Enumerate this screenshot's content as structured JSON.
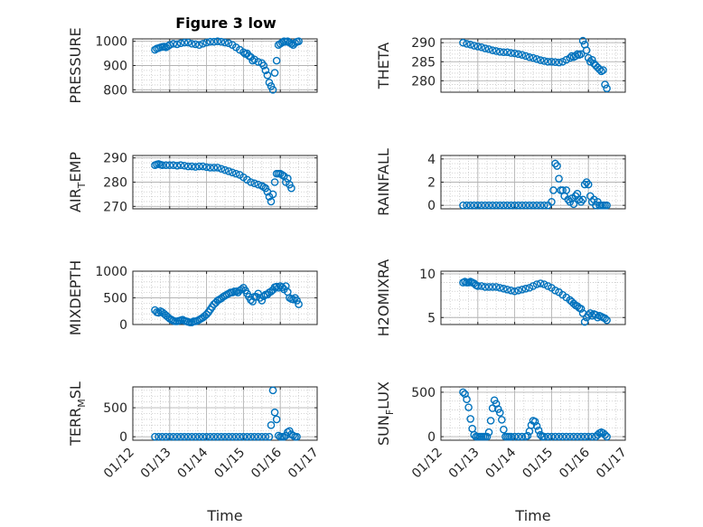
{
  "figure_title": "Figure 3 low",
  "colors": {
    "marker": "#0072BD",
    "axis": "#262626",
    "grid": "#c8c8c8",
    "frame": "#ffffff"
  },
  "chart_data": [
    {
      "type": "scatter",
      "ylabel": "PRESSURE",
      "ylim": [
        790,
        1010
      ],
      "yticks": [
        "800",
        "900",
        "1000"
      ],
      "ytick_values": [
        800,
        900,
        1000
      ],
      "xlim": [
        0,
        5
      ],
      "x_tick_labels": [],
      "xlabel": "",
      "grid": true,
      "x": [
        0.6,
        0.65,
        0.7,
        0.75,
        0.8,
        0.85,
        0.9,
        0.95,
        1.0,
        1.1,
        1.2,
        1.3,
        1.4,
        1.5,
        1.6,
        1.7,
        1.8,
        1.9,
        2.0,
        2.1,
        2.2,
        2.3,
        2.4,
        2.5,
        2.6,
        2.7,
        2.8,
        2.9,
        3.0,
        3.05,
        3.1,
        3.15,
        3.2,
        3.25,
        3.3,
        3.4,
        3.5,
        3.55,
        3.6,
        3.65,
        3.7,
        3.75,
        3.8,
        3.85,
        3.9,
        3.95,
        4.0,
        4.05,
        4.1,
        4.15,
        4.2,
        4.25,
        4.3,
        4.35,
        4.4,
        4.45,
        4.5
      ],
      "y": [
        965,
        970,
        972,
        975,
        977,
        978,
        975,
        980,
        985,
        990,
        988,
        992,
        995,
        995,
        990,
        988,
        985,
        990,
        995,
        998,
        998,
        1000,
        998,
        995,
        992,
        985,
        975,
        965,
        955,
        948,
        950,
        940,
        935,
        920,
        925,
        915,
        910,
        900,
        880,
        860,
        830,
        815,
        800,
        870,
        920,
        985,
        990,
        995,
        1000,
        998,
        1000,
        995,
        990,
        985,
        993,
        998,
        1000
      ]
    },
    {
      "type": "scatter",
      "ylabel": "THETA",
      "ylim": [
        277,
        291
      ],
      "yticks": [
        "280",
        "285",
        "290"
      ],
      "ytick_values": [
        280,
        285,
        290
      ],
      "xlim": [
        0,
        5
      ],
      "x_tick_labels": [],
      "xlabel": "",
      "grid": true,
      "x": [
        0.6,
        0.7,
        0.8,
        0.9,
        1.0,
        1.1,
        1.2,
        1.3,
        1.4,
        1.5,
        1.6,
        1.7,
        1.8,
        1.9,
        2.0,
        2.1,
        2.2,
        2.3,
        2.4,
        2.5,
        2.6,
        2.7,
        2.8,
        2.9,
        3.0,
        3.1,
        3.2,
        3.3,
        3.4,
        3.5,
        3.55,
        3.6,
        3.65,
        3.7,
        3.75,
        3.8,
        3.85,
        3.9,
        3.95,
        4.0,
        4.05,
        4.1,
        4.15,
        4.2,
        4.25,
        4.3,
        4.35,
        4.4,
        4.45,
        4.5
      ],
      "y": [
        290,
        289.7,
        289.5,
        289.2,
        289,
        288.8,
        288.5,
        288.3,
        288,
        287.8,
        287.6,
        287.5,
        287.5,
        287.3,
        287.2,
        287,
        286.8,
        286.5,
        286.2,
        286,
        285.7,
        285.4,
        285.2,
        285,
        285,
        284.9,
        284.8,
        285,
        285.5,
        286,
        286.5,
        286.2,
        286.5,
        287,
        286.8,
        287,
        290.5,
        289.5,
        288,
        286,
        285,
        285.5,
        284.5,
        284,
        283.5,
        283,
        282.5,
        282.8,
        279,
        278
      ]
    },
    {
      "type": "scatter",
      "ylabel": "AIR_TEMP",
      "ylabel_base": "AIR",
      "ylabel_sub": "T",
      "ylabel_rest": "EMP",
      "ylim": [
        269,
        291
      ],
      "yticks": [
        "270",
        "280",
        "290"
      ],
      "ytick_values": [
        270,
        280,
        290
      ],
      "xlim": [
        0,
        5
      ],
      "x_tick_labels": [],
      "xlabel": "",
      "grid": true,
      "x": [
        0.6,
        0.65,
        0.7,
        0.75,
        0.8,
        0.9,
        1.0,
        1.1,
        1.2,
        1.3,
        1.4,
        1.5,
        1.6,
        1.7,
        1.8,
        1.9,
        2.0,
        2.1,
        2.2,
        2.3,
        2.4,
        2.5,
        2.6,
        2.7,
        2.8,
        2.9,
        3.0,
        3.1,
        3.2,
        3.3,
        3.4,
        3.5,
        3.55,
        3.6,
        3.65,
        3.7,
        3.75,
        3.8,
        3.85,
        3.9,
        3.95,
        4.0,
        4.05,
        4.1,
        4.15,
        4.2,
        4.25,
        4.3
      ],
      "y": [
        287,
        287.3,
        287.5,
        287.2,
        287,
        287,
        287,
        287,
        286.8,
        287,
        286.8,
        286.5,
        286.5,
        286.3,
        286.5,
        286.5,
        286.2,
        286,
        286,
        286,
        285.5,
        285,
        284.5,
        284,
        283.5,
        283,
        282,
        281,
        280,
        279.5,
        279,
        278.5,
        278,
        277.5,
        276,
        274,
        272,
        275,
        280,
        283.5,
        283.5,
        283.5,
        283,
        282.5,
        280,
        281.5,
        279,
        277.5
      ]
    },
    {
      "type": "scatter",
      "ylabel": "RAINFALL",
      "ylim": [
        -0.3,
        4.3
      ],
      "yticks": [
        "0",
        "2",
        "4"
      ],
      "ytick_values": [
        0,
        2,
        4
      ],
      "xlim": [
        0,
        5
      ],
      "x_tick_labels": [],
      "xlabel": "",
      "grid": true,
      "x": [
        0.6,
        0.7,
        0.8,
        0.9,
        1.0,
        1.1,
        1.2,
        1.3,
        1.4,
        1.5,
        1.6,
        1.7,
        1.8,
        1.9,
        2.0,
        2.1,
        2.2,
        2.3,
        2.4,
        2.5,
        2.6,
        2.7,
        2.8,
        2.9,
        3.0,
        3.05,
        3.1,
        3.15,
        3.2,
        3.25,
        3.3,
        3.35,
        3.4,
        3.45,
        3.5,
        3.55,
        3.6,
        3.65,
        3.7,
        3.75,
        3.8,
        3.85,
        3.9,
        3.95,
        4.0,
        4.05,
        4.1,
        4.15,
        4.2,
        4.25,
        4.3,
        4.35,
        4.4,
        4.45,
        4.5
      ],
      "y": [
        0,
        0,
        0,
        0,
        0,
        0,
        0,
        0,
        0,
        0,
        0,
        0,
        0,
        0,
        0,
        0,
        0,
        0,
        0,
        0,
        0,
        0,
        0,
        0,
        0.3,
        1.3,
        3.6,
        3.4,
        2.3,
        1.3,
        1.3,
        0.8,
        1.3,
        0.5,
        0.3,
        0.6,
        0.1,
        0.8,
        1.0,
        0.5,
        0.3,
        0.5,
        1.8,
        2.0,
        1.8,
        0.8,
        0.3,
        0.5,
        0,
        0.3,
        0,
        0,
        0,
        0,
        0
      ]
    },
    {
      "type": "scatter",
      "ylabel": "MIXDEPTH",
      "ylim": [
        0,
        1000
      ],
      "yticks": [
        "0",
        "500",
        "1000"
      ],
      "ytick_values": [
        0,
        500,
        1000
      ],
      "xlim": [
        0,
        5
      ],
      "x_tick_labels": [],
      "xlabel": "",
      "grid": true,
      "x": [
        0.6,
        0.65,
        0.7,
        0.75,
        0.8,
        0.85,
        0.9,
        0.95,
        1.0,
        1.05,
        1.1,
        1.15,
        1.2,
        1.25,
        1.3,
        1.35,
        1.4,
        1.45,
        1.5,
        1.55,
        1.6,
        1.65,
        1.7,
        1.75,
        1.8,
        1.85,
        1.9,
        1.95,
        2.0,
        2.05,
        2.1,
        2.15,
        2.2,
        2.25,
        2.3,
        2.35,
        2.4,
        2.45,
        2.5,
        2.55,
        2.6,
        2.65,
        2.7,
        2.75,
        2.8,
        2.85,
        2.9,
        2.95,
        3.0,
        3.05,
        3.1,
        3.15,
        3.2,
        3.25,
        3.3,
        3.35,
        3.4,
        3.45,
        3.5,
        3.55,
        3.6,
        3.65,
        3.7,
        3.75,
        3.8,
        3.85,
        3.9,
        3.95,
        4.0,
        4.05,
        4.1,
        4.15,
        4.2,
        4.25,
        4.3,
        4.35,
        4.4,
        4.45,
        4.5
      ],
      "y": [
        270,
        230,
        220,
        250,
        230,
        200,
        170,
        140,
        110,
        90,
        70,
        60,
        60,
        70,
        80,
        90,
        70,
        60,
        50,
        40,
        40,
        60,
        60,
        70,
        90,
        110,
        130,
        160,
        190,
        230,
        280,
        330,
        380,
        410,
        450,
        470,
        490,
        520,
        540,
        560,
        580,
        600,
        600,
        620,
        620,
        600,
        640,
        660,
        690,
        640,
        580,
        520,
        460,
        430,
        520,
        520,
        580,
        500,
        450,
        530,
        560,
        560,
        600,
        620,
        650,
        700,
        710,
        690,
        720,
        700,
        660,
        720,
        610,
        500,
        480,
        470,
        500,
        450,
        380
      ]
    },
    {
      "type": "scatter",
      "ylabel": "H2OMIXRA",
      "ylim": [
        4.2,
        10.3
      ],
      "yticks": [
        "5",
        "10"
      ],
      "ytick_values": [
        5,
        10
      ],
      "xlim": [
        0,
        5
      ],
      "x_tick_labels": [],
      "xlabel": "",
      "grid": true,
      "x": [
        0.6,
        0.65,
        0.7,
        0.75,
        0.8,
        0.85,
        0.9,
        0.95,
        1.0,
        1.1,
        1.2,
        1.3,
        1.4,
        1.5,
        1.6,
        1.7,
        1.8,
        1.9,
        2.0,
        2.1,
        2.2,
        2.3,
        2.4,
        2.5,
        2.6,
        2.7,
        2.8,
        2.9,
        3.0,
        3.1,
        3.2,
        3.3,
        3.4,
        3.5,
        3.55,
        3.6,
        3.65,
        3.7,
        3.75,
        3.8,
        3.85,
        3.9,
        3.95,
        4.0,
        4.05,
        4.1,
        4.15,
        4.2,
        4.25,
        4.3,
        4.35,
        4.4,
        4.45,
        4.5
      ],
      "y": [
        9.0,
        9.1,
        9.0,
        9.0,
        9.1,
        9.0,
        8.9,
        8.7,
        8.6,
        8.6,
        8.5,
        8.5,
        8.5,
        8.5,
        8.4,
        8.3,
        8.2,
        8.1,
        8.0,
        8.1,
        8.2,
        8.3,
        8.4,
        8.6,
        8.8,
        8.9,
        8.8,
        8.6,
        8.4,
        8.1,
        7.9,
        7.6,
        7.3,
        7.0,
        6.8,
        6.6,
        6.4,
        6.3,
        6.1,
        6.0,
        5.5,
        4.5,
        5.0,
        5.3,
        5.5,
        5.2,
        5.4,
        5.3,
        5.0,
        5.2,
        5.1,
        5.0,
        4.9,
        4.7
      ]
    },
    {
      "type": "scatter",
      "ylabel": "TERR_MSL",
      "ylabel_base": "TERR",
      "ylabel_sub": "M",
      "ylabel_rest": "SL",
      "ylim": [
        -60,
        860
      ],
      "yticks": [
        "0",
        "500"
      ],
      "ytick_values": [
        0,
        500
      ],
      "xlim": [
        0,
        5
      ],
      "x_tick_labels": [
        "01/12",
        "01/13",
        "01/14",
        "01/15",
        "01/16",
        "01/17"
      ],
      "xlabel": "Time",
      "grid": true,
      "x": [
        0.6,
        0.7,
        0.8,
        0.9,
        1.0,
        1.1,
        1.2,
        1.3,
        1.4,
        1.5,
        1.6,
        1.7,
        1.8,
        1.9,
        2.0,
        2.1,
        2.2,
        2.3,
        2.4,
        2.5,
        2.6,
        2.7,
        2.8,
        2.9,
        3.0,
        3.1,
        3.2,
        3.3,
        3.4,
        3.5,
        3.6,
        3.7,
        3.75,
        3.8,
        3.85,
        3.9,
        3.95,
        4.0,
        4.05,
        4.1,
        4.15,
        4.2,
        4.25,
        4.3,
        4.35,
        4.4,
        4.45
      ],
      "y": [
        0,
        0,
        0,
        0,
        0,
        0,
        0,
        0,
        0,
        0,
        0,
        0,
        0,
        0,
        0,
        0,
        0,
        0,
        0,
        0,
        0,
        0,
        0,
        0,
        0,
        0,
        0,
        0,
        0,
        0,
        0,
        0,
        200,
        800,
        420,
        300,
        20,
        0,
        0,
        0,
        20,
        80,
        100,
        40,
        20,
        0,
        0
      ]
    },
    {
      "type": "scatter",
      "ylabel": "SUN_FLUX",
      "ylabel_base": "SUN",
      "ylabel_sub": "F",
      "ylabel_rest": "LUX",
      "ylim": [
        -40,
        560
      ],
      "yticks": [
        "0",
        "500"
      ],
      "ytick_values": [
        0,
        500
      ],
      "xlim": [
        0,
        5
      ],
      "x_tick_labels": [
        "01/12",
        "01/13",
        "01/14",
        "01/15",
        "01/16",
        "01/17"
      ],
      "xlabel": "Time",
      "grid": true,
      "x": [
        0.6,
        0.65,
        0.7,
        0.75,
        0.8,
        0.85,
        0.9,
        0.95,
        1.0,
        1.05,
        1.1,
        1.15,
        1.2,
        1.25,
        1.3,
        1.35,
        1.4,
        1.45,
        1.5,
        1.55,
        1.6,
        1.65,
        1.7,
        1.75,
        1.8,
        1.85,
        1.9,
        2.0,
        2.1,
        2.2,
        2.3,
        2.35,
        2.4,
        2.45,
        2.5,
        2.55,
        2.6,
        2.65,
        2.7,
        2.75,
        2.8,
        2.9,
        3.0,
        3.1,
        3.2,
        3.3,
        3.4,
        3.5,
        3.6,
        3.7,
        3.8,
        3.9,
        4.0,
        4.1,
        4.2,
        4.25,
        4.3,
        4.35,
        4.4,
        4.45,
        4.5
      ],
      "y": [
        500,
        480,
        420,
        330,
        200,
        90,
        20,
        0,
        0,
        0,
        0,
        0,
        0,
        0,
        50,
        180,
        320,
        410,
        370,
        310,
        270,
        190,
        80,
        0,
        0,
        0,
        0,
        0,
        0,
        0,
        0,
        10,
        60,
        130,
        180,
        170,
        120,
        70,
        20,
        0,
        0,
        0,
        0,
        0,
        0,
        0,
        0,
        0,
        0,
        0,
        0,
        0,
        0,
        0,
        0,
        20,
        40,
        50,
        40,
        20,
        0
      ]
    }
  ]
}
